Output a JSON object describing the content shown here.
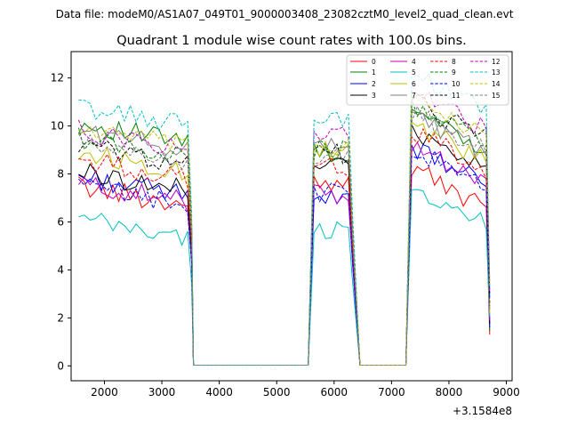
{
  "suptitle": "Data file: modeM0/AS1A07_049T01_9000003408_23082cztM0_level2_quad_clean.evt",
  "chart_data": {
    "type": "line",
    "title": "Quadrant 1 module wise count rates with 100.0s bins.",
    "xlabel": "",
    "ylabel": "",
    "x_offset_label": "+3.1584e8",
    "xlim": [
      1420,
      9100
    ],
    "ylim": [
      -0.62,
      13.1
    ],
    "xticks": [
      2000,
      3000,
      4000,
      5000,
      6000,
      7000,
      8000,
      9000
    ],
    "xtick_labels": [
      "2000",
      "3000",
      "4000",
      "5000",
      "6000",
      "7000",
      "8000",
      "9000"
    ],
    "yticks": [
      0,
      2,
      4,
      6,
      8,
      10,
      12
    ],
    "ytick_labels": [
      "0",
      "2",
      "4",
      "6",
      "8",
      "10",
      "12"
    ],
    "legend_location": "top-right",
    "legend_ncol": 4,
    "segments": [
      {
        "start": 1550,
        "end": 3450
      },
      {
        "start": 5650,
        "end": 6250
      },
      {
        "start": 7350,
        "end": 8650
      }
    ],
    "gaps": [
      {
        "start": 3550,
        "end": 5550
      },
      {
        "start": 6450,
        "end": 7250
      }
    ],
    "series": [
      {
        "name": "0",
        "color": "#ff0000",
        "dash": "solid",
        "levels": [
          6.9,
          7.7,
          7.3
        ]
      },
      {
        "name": "1",
        "color": "#008000",
        "dash": "solid",
        "levels": [
          9.5,
          8.8,
          9.8
        ]
      },
      {
        "name": "2",
        "color": "#0000ff",
        "dash": "solid",
        "levels": [
          7.3,
          6.9,
          8.2
        ]
      },
      {
        "name": "3",
        "color": "#000000",
        "dash": "solid",
        "levels": [
          7.5,
          8.6,
          9.0
        ]
      },
      {
        "name": "4",
        "color": "#bf00bf",
        "dash": "solid",
        "levels": [
          7.0,
          7.1,
          8.4
        ]
      },
      {
        "name": "5",
        "color": "#00bfbf",
        "dash": "solid",
        "levels": [
          5.5,
          5.7,
          6.6
        ]
      },
      {
        "name": "6",
        "color": "#bfbf00",
        "dash": "solid",
        "levels": [
          8.3,
          8.9,
          9.2
        ]
      },
      {
        "name": "7",
        "color": "#808080",
        "dash": "solid",
        "levels": [
          9.2,
          9.1,
          9.6
        ]
      },
      {
        "name": "8",
        "color": "#ff0000",
        "dash": "dashed",
        "levels": [
          8.0,
          8.3,
          8.9
        ]
      },
      {
        "name": "9",
        "color": "#008000",
        "dash": "dashed",
        "levels": [
          8.9,
          9.0,
          10.0
        ]
      },
      {
        "name": "10",
        "color": "#0000ff",
        "dash": "dashed",
        "levels": [
          6.9,
          7.2,
          8.1
        ]
      },
      {
        "name": "11",
        "color": "#000000",
        "dash": "dashed",
        "levels": [
          8.6,
          8.8,
          10.2
        ]
      },
      {
        "name": "12",
        "color": "#bf00bf",
        "dash": "dashed",
        "levels": [
          9.2,
          9.5,
          10.5
        ]
      },
      {
        "name": "13",
        "color": "#00bfbf",
        "dash": "dashed",
        "levels": [
          10.2,
          10.3,
          11.4
        ]
      },
      {
        "name": "14",
        "color": "#bfbf00",
        "dash": "dashed",
        "levels": [
          9.3,
          9.0,
          10.2
        ]
      },
      {
        "name": "15",
        "color": "#808080",
        "dash": "dashed",
        "levels": [
          8.7,
          8.8,
          9.7
        ]
      }
    ]
  }
}
